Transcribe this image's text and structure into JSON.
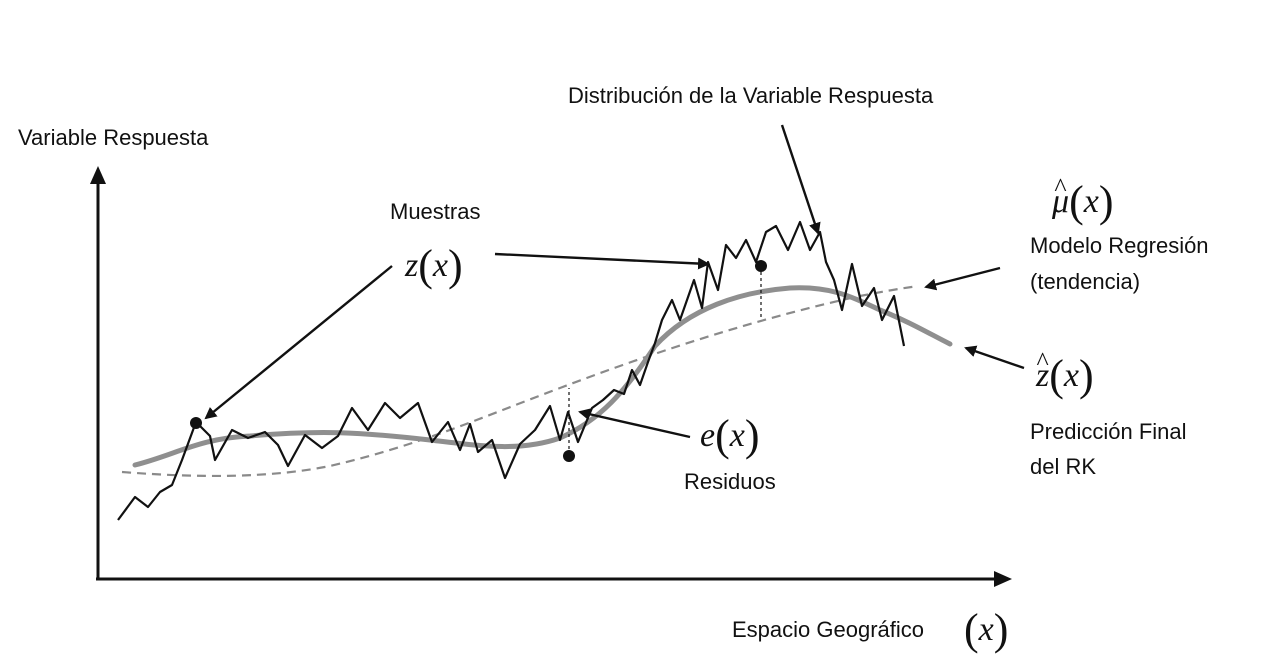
{
  "labels": {
    "y_axis": "Variable Respuesta",
    "distribution": "Distribución de la Variable Respuesta",
    "samples": "Muestras",
    "trend_line1": "Modelo Regresión",
    "trend_line2": "(tendencia)",
    "final_line1": "Predicción Final",
    "final_line2": "del RK",
    "residuals": "Residuos",
    "x_axis": "Espacio Geográfico"
  },
  "math": {
    "z_var": "z",
    "mu_var": "μ",
    "zhat_var": "z",
    "e_var": "e",
    "x_var": "x",
    "open_paren": "(",
    "close_paren": ")"
  },
  "colors": {
    "line": "#111111",
    "final_curve": "#8f8f8f",
    "trend_dashed": "#8a8a8a"
  },
  "icons": [
    "arrow-head",
    "sample-dot"
  ]
}
